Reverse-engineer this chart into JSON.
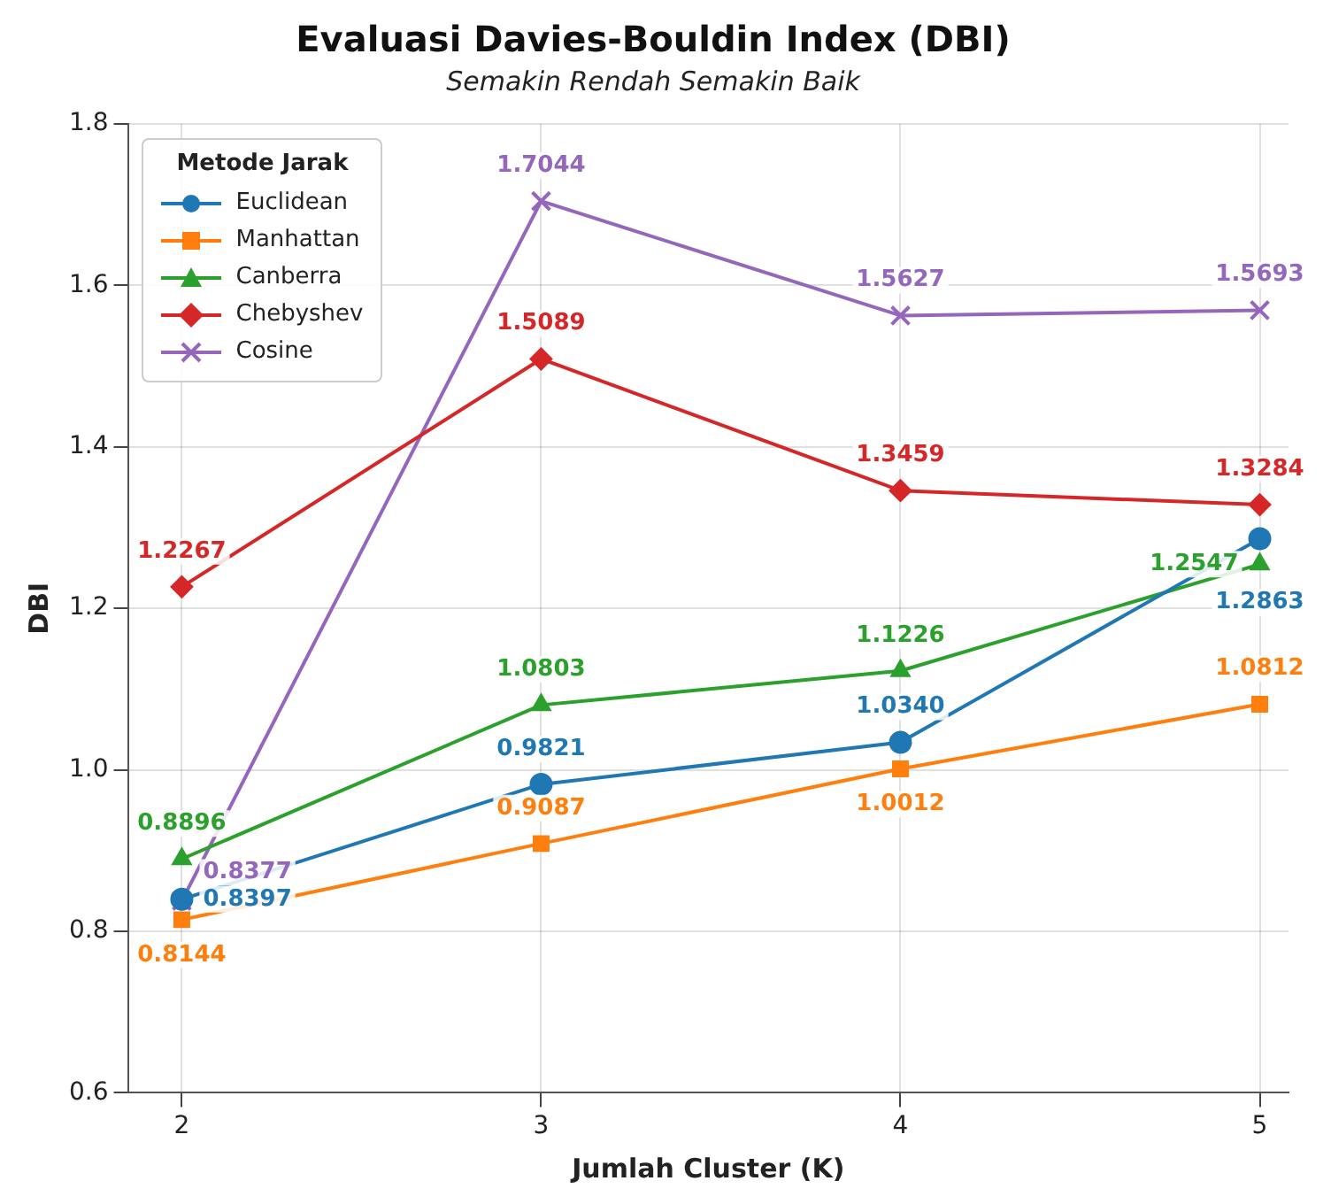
{
  "chart_data": {
    "type": "line",
    "title": "Evaluasi Davies-Bouldin Index (DBI)",
    "subtitle": "Semakin Rendah Semakin Baik",
    "xlabel": "Jumlah Cluster (K)",
    "ylabel": "DBI",
    "legend_title": "Metode Jarak",
    "x": [
      2,
      3,
      4,
      5
    ],
    "series": [
      {
        "name": "Euclidean",
        "color": "#1f77b4",
        "marker": "circle",
        "values": [
          0.8397,
          0.9821,
          1.034,
          1.2863
        ],
        "value_labels": [
          "0.8397",
          "0.9821",
          "1.0340",
          "1.2863"
        ]
      },
      {
        "name": "Manhattan",
        "color": "#ff7f0e",
        "marker": "square",
        "values": [
          0.8144,
          0.9087,
          1.0012,
          1.0812
        ],
        "value_labels": [
          "0.8144",
          "0.9087",
          "1.0012",
          "1.0812"
        ]
      },
      {
        "name": "Canberra",
        "color": "#2ca02c",
        "marker": "triangle",
        "values": [
          0.8896,
          1.0803,
          1.1226,
          1.2547
        ],
        "value_labels": [
          "0.8896",
          "1.0803",
          "1.1226",
          "1.2547"
        ]
      },
      {
        "name": "Chebyshev",
        "color": "#d62728",
        "marker": "diamond",
        "values": [
          1.2267,
          1.5089,
          1.3459,
          1.3284
        ],
        "value_labels": [
          "1.2267",
          "1.5089",
          "1.3459",
          "1.3284"
        ]
      },
      {
        "name": "Cosine",
        "color": "#9467bd",
        "marker": "cross",
        "values": [
          0.8377,
          1.7044,
          1.5627,
          1.5693
        ],
        "value_labels": [
          "0.8377",
          "1.7044",
          "1.5627",
          "1.5693"
        ]
      }
    ],
    "xlim": [
      1.85,
      5.08
    ],
    "xticks": [
      2,
      3,
      4,
      5
    ],
    "ylim": [
      0.6,
      1.8
    ],
    "yticks": [
      0.6,
      0.8,
      {
        "value": 1,
        "label": "1.0"
      },
      1.2,
      1.4,
      1.6,
      1.8
    ],
    "grid": true,
    "legend": "top left",
    "line_style": "solid"
  }
}
